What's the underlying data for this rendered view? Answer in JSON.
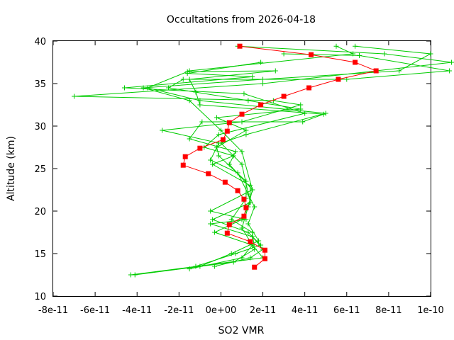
{
  "chart_data": {
    "type": "line",
    "title": "Occultations from 2026-04-18",
    "xlabel": "SO2 VMR",
    "ylabel": "Altitude (km)",
    "xlim": [
      -8e-11,
      1e-10
    ],
    "ylim": [
      10,
      40
    ],
    "x_ticks": [
      -8e-11,
      -6e-11,
      -4e-11,
      -2e-11,
      0,
      2e-11,
      4e-11,
      6e-11,
      8e-11,
      1e-10
    ],
    "x_tick_labels": [
      "-8e-11",
      "-6e-11",
      "-4e-11",
      "-2e-11",
      "0e+00",
      "2e-11",
      "4e-11",
      "6e-11",
      "8e-11",
      "1e-10"
    ],
    "y_ticks": [
      10,
      15,
      20,
      25,
      30,
      35,
      40
    ],
    "y_tick_labels": [
      "10",
      "15",
      "20",
      "25",
      "30",
      "35",
      "40"
    ],
    "grid": false,
    "legend": "none",
    "colors": {
      "mean": "#ff0000",
      "individual": "#00cc00"
    },
    "series": [
      {
        "role": "individual",
        "points": [
          [
            6.4e-11,
            39.4
          ],
          [
            1e-10,
            38.5
          ],
          [
            8.5e-11,
            36.5
          ],
          [
            2e-11,
            35.5
          ],
          [
            -3.7e-11,
            34.5
          ],
          [
            -1.5e-11,
            33.0
          ],
          [
            0.0,
            29.5
          ],
          [
            1e-11,
            27.0
          ],
          [
            1.5e-11,
            22.5
          ],
          [
            1.3e-11,
            20.5
          ],
          [
            1e-11,
            18.0
          ],
          [
            1.5e-11,
            16.0
          ],
          [
            2e-11,
            14.5
          ],
          [
            -4.3e-11,
            12.5
          ]
        ]
      },
      {
        "role": "individual",
        "points": [
          [
            5.5e-11,
            39.4
          ],
          [
            6.3e-11,
            38.5
          ],
          [
            -1.5e-11,
            36.5
          ],
          [
            -3.5e-11,
            34.5
          ],
          [
            -1e-11,
            33.0
          ],
          [
            5e-11,
            31.5
          ],
          [
            1.2e-11,
            29.0
          ],
          [
            0.0,
            28.0
          ],
          [
            1e-11,
            25.5
          ],
          [
            1.4e-11,
            21.0
          ],
          [
            1e-11,
            19.0
          ],
          [
            -3e-12,
            17.5
          ],
          [
            1.5e-11,
            16.0
          ],
          [
            1e-11,
            14.5
          ],
          [
            -1.5e-11,
            13.2
          ]
        ]
      },
      {
        "role": "individual",
        "points": [
          [
            8e-12,
            39.4
          ],
          [
            7.8e-11,
            38.5
          ],
          [
            1.1e-10,
            37.5
          ],
          [
            2e-11,
            35.0
          ],
          [
            -7e-11,
            33.5
          ],
          [
            2.5e-11,
            33.0
          ],
          [
            3.8e-11,
            32.5
          ],
          [
            1e-11,
            30.5
          ],
          [
            -2.8e-11,
            29.5
          ],
          [
            -1e-12,
            28.0
          ],
          [
            -5e-12,
            26.0
          ],
          [
            8e-12,
            24.5
          ],
          [
            1.3e-11,
            22.0
          ],
          [
            1.6e-11,
            20.5
          ],
          [
            1.3e-11,
            18.5
          ],
          [
            1.8e-11,
            16.5
          ],
          [
            5e-12,
            15.0
          ],
          [
            -1e-11,
            13.5
          ]
        ]
      },
      {
        "role": "individual",
        "points": [
          [
            3e-11,
            38.5
          ],
          [
            6.6e-11,
            38.3
          ],
          [
            1.09e-10,
            36.5
          ],
          [
            6e-11,
            35.5
          ],
          [
            -1.8e-11,
            35.5
          ],
          [
            -2.5e-11,
            34.5
          ],
          [
            1.3e-11,
            33.0
          ],
          [
            3.8e-11,
            32.0
          ],
          [
            -2e-12,
            31.0
          ],
          [
            1.2e-11,
            29.5
          ],
          [
            -2e-12,
            27.5
          ],
          [
            -1e-12,
            26.5
          ],
          [
            1.2e-11,
            23.5
          ],
          [
            1.2e-11,
            21.5
          ],
          [
            5e-12,
            19.0
          ],
          [
            1.5e-11,
            17.5
          ],
          [
            1.6e-11,
            15.5
          ],
          [
            6e-12,
            14.0
          ],
          [
            -4.1e-11,
            12.5
          ]
        ]
      },
      {
        "role": "individual",
        "points": [
          [
            1.9e-11,
            37.5
          ],
          [
            -1.6e-11,
            36.2
          ],
          [
            1.5e-11,
            35.8
          ],
          [
            -4.6e-11,
            34.5
          ],
          [
            1.1e-11,
            33.8
          ],
          [
            4e-11,
            31.5
          ],
          [
            -1e-12,
            29.0
          ],
          [
            -8e-12,
            27.5
          ],
          [
            6e-12,
            26.5
          ],
          [
            -4e-12,
            25.5
          ],
          [
            1.4e-11,
            23.0
          ],
          [
            1.4e-11,
            21.0
          ],
          [
            -4e-12,
            19.0
          ],
          [
            1.3e-11,
            17.5
          ],
          [
            1.9e-11,
            16.0
          ],
          [
            7e-12,
            15.0
          ],
          [
            -1.2e-11,
            13.5
          ]
        ]
      },
      {
        "role": "individual",
        "points": [
          [
            -1.6e-11,
            36.4
          ],
          [
            2.6e-11,
            36.5
          ],
          [
            -1.5e-11,
            35.5
          ],
          [
            -1.2e-11,
            34.0
          ],
          [
            -1e-11,
            32.5
          ],
          [
            4.9e-11,
            31.4
          ],
          [
            3.9e-11,
            30.5
          ],
          [
            -9e-12,
            30.5
          ],
          [
            -1.5e-11,
            28.5
          ],
          [
            7e-12,
            27.0
          ],
          [
            4e-12,
            25.5
          ],
          [
            1.5e-11,
            22.5
          ],
          [
            -5e-12,
            20.0
          ],
          [
            1.2e-11,
            19.0
          ],
          [
            -5e-12,
            18.5
          ],
          [
            1.5e-11,
            17.0
          ],
          [
            2e-11,
            15.5
          ],
          [
            1.4e-11,
            14.5
          ],
          [
            -3e-12,
            13.5
          ]
        ]
      },
      {
        "role": "mean",
        "points": [
          [
            9e-12,
            39.4
          ],
          [
            4.3e-11,
            38.4
          ],
          [
            6.4e-11,
            37.5
          ],
          [
            7.4e-11,
            36.5
          ],
          [
            5.6e-11,
            35.5
          ],
          [
            4.2e-11,
            34.5
          ],
          [
            3e-11,
            33.5
          ],
          [
            1.9e-11,
            32.5
          ],
          [
            1e-11,
            31.4
          ],
          [
            4e-12,
            30.4
          ],
          [
            3e-12,
            29.4
          ],
          [
            1e-12,
            28.4
          ],
          [
            -1e-11,
            27.4
          ],
          [
            -1.7e-11,
            26.4
          ],
          [
            -1.8e-11,
            25.4
          ],
          [
            -6e-12,
            24.4
          ],
          [
            2e-12,
            23.4
          ],
          [
            8e-12,
            22.4
          ],
          [
            1.1e-11,
            21.4
          ],
          [
            1.2e-11,
            20.4
          ],
          [
            1.1e-11,
            19.4
          ],
          [
            4e-12,
            18.4
          ],
          [
            3e-12,
            17.4
          ],
          [
            1.4e-11,
            16.4
          ],
          [
            2.1e-11,
            15.4
          ],
          [
            2.1e-11,
            14.4
          ],
          [
            1.6e-11,
            13.4
          ]
        ]
      }
    ]
  }
}
